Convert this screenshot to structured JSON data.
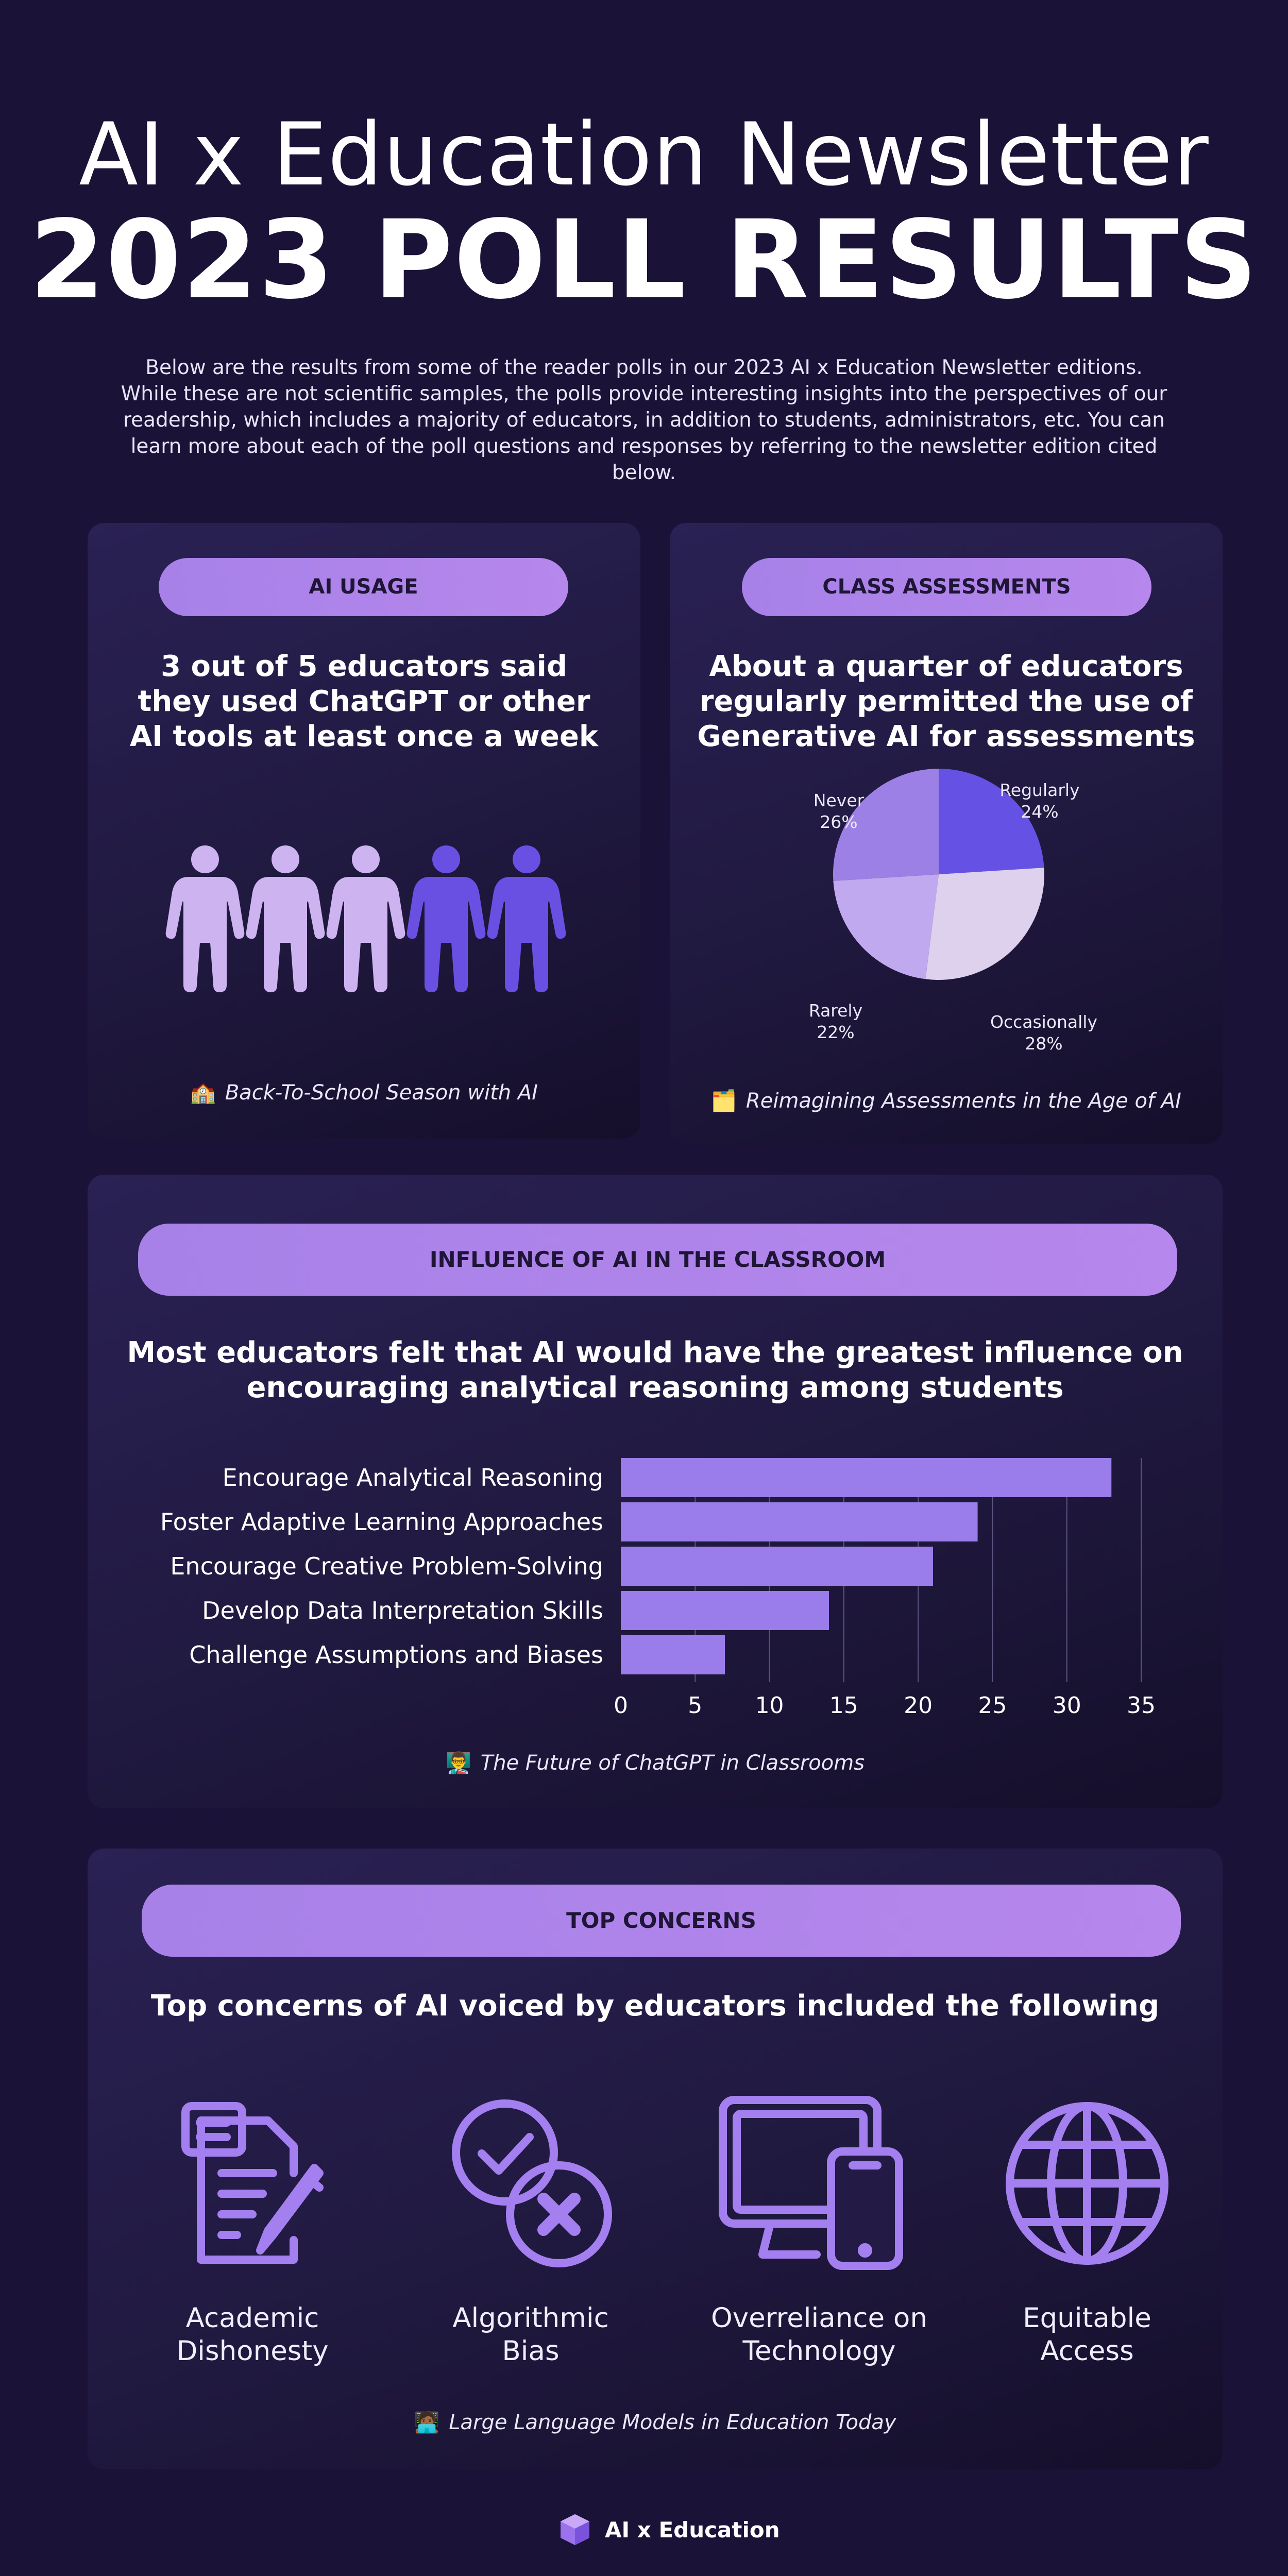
{
  "header": {
    "title_line1": "AI x Education Newsletter",
    "title_line2": "2023 POLL RESULTS",
    "intro": "Below are the results from some of the reader polls in our 2023 AI x Education Newsletter editions. While these are not scientific samples, the polls provide interesting insights into the perspectives of our readership, which includes a majority of educators, in addition to students, administrators, etc. You can learn more about each of the poll questions and responses by referring to the newsletter edition cited below."
  },
  "ai_usage": {
    "pill": "AI USAGE",
    "heading_lines": [
      "3 out of 5 educators said",
      "they used ChatGPT or other",
      "AI tools at least once a week"
    ],
    "people": [
      {
        "icon": "person-icon",
        "color": "#cdb3ef"
      },
      {
        "icon": "person-icon",
        "color": "#cdb3ef"
      },
      {
        "icon": "person-icon",
        "color": "#cdb3ef"
      },
      {
        "icon": "person-icon",
        "color": "#6a50e2"
      },
      {
        "icon": "person-icon",
        "color": "#6a50e2"
      }
    ],
    "source_icon": "school-emoji",
    "source_emoji": "🏫",
    "source": "Back-To-School Season with AI"
  },
  "class_assessments": {
    "pill": "CLASS ASSESSMENTS",
    "heading_lines": [
      "About a quarter of educators",
      "regularly permitted the use of",
      "Generative AI for assessments"
    ],
    "source_icon": "folder-emoji",
    "source_emoji": "🗂️",
    "source": "Reimagining Assessments in the Age of AI"
  },
  "influence": {
    "pill": "INFLUENCE OF AI IN THE CLASSROOM",
    "heading_lines": [
      "Most educators felt that AI would have the greatest influence on",
      "encouraging analytical reasoning among students"
    ],
    "source_icon": "teacher-emoji",
    "source_emoji": "👨‍🏫",
    "source": "The Future of ChatGPT in Classrooms"
  },
  "concerns": {
    "pill": "TOP CONCERNS",
    "heading": "Top concerns of AI voiced by educators included the following",
    "items": [
      {
        "icon": "document-pencil-icon",
        "line1": "Academic",
        "line2": "Dishonesty"
      },
      {
        "icon": "check-cross-icon",
        "line1": "Algorithmic",
        "line2": "Bias"
      },
      {
        "icon": "devices-icon",
        "line1": "Overreliance on",
        "line2": "Technology"
      },
      {
        "icon": "globe-icon",
        "line1": "Equitable",
        "line2": "Access"
      }
    ],
    "source_icon": "technologist-emoji",
    "source_emoji": "🧑🏾‍💻",
    "source": "Large Language Models in Education Today"
  },
  "footer": {
    "logo_icon": "cube-logo-icon",
    "brand": "AI x Education"
  },
  "colors": {
    "background": "#1b1238",
    "pill": "#b083ea",
    "bar": "#9a7cea",
    "accent_dark": "#6a50e2",
    "person_light": "#cdb3ef",
    "pie_regularly": "#6551e3",
    "pie_occasionally": "#ddd1ee",
    "pie_rarely": "#c1a9ef",
    "pie_never": "#9d80e6"
  },
  "chart_data": [
    {
      "type": "pie",
      "labels": [
        "Regularly",
        "Occasionally",
        "Rarely",
        "Never"
      ],
      "values": [
        24,
        28,
        22,
        26
      ],
      "value_labels": [
        "24%",
        "28%",
        "22%",
        "26%"
      ],
      "colors": [
        "#6551e3",
        "#ddd1ee",
        "#c1a9ef",
        "#9d80e6"
      ]
    },
    {
      "type": "bar",
      "orientation": "horizontal",
      "categories": [
        "Encourage Analytical Reasoning",
        "Foster Adaptive Learning Approaches",
        "Encourage Creative Problem-Solving",
        "Develop Data Interpretation Skills",
        "Challenge Assumptions and Biases"
      ],
      "values": [
        33,
        24,
        21,
        14,
        7
      ],
      "xlim": [
        0,
        35
      ],
      "xticks": [
        0,
        5,
        10,
        15,
        20,
        25,
        30,
        35
      ],
      "grid": true,
      "color": "#9a7cea"
    }
  ]
}
